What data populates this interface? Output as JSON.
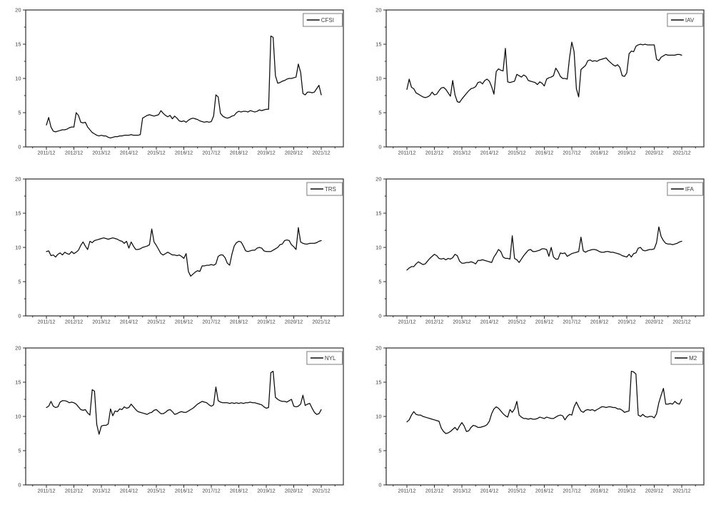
{
  "page": {
    "background": "#ffffff",
    "grid_rows": 3,
    "grid_cols": 2
  },
  "axis_style": {
    "line_color": "#2b2b2b",
    "label_color": "#3c3c3c",
    "series_color": "#0a0a0a"
  },
  "chart_data": [
    {
      "type": "line",
      "legend": "CFSI",
      "legend_position": "top-right",
      "grid": false,
      "x_start": "2011/12",
      "x_step_months": 1,
      "x_end": "2021/12",
      "x_tick_labels": [
        "2011/12",
        "2012/12",
        "2013/12",
        "2014/12",
        "2015/12",
        "2016/12",
        "2017/12",
        "2018/12",
        "2019/12",
        "2020/12",
        "2021/12"
      ],
      "x_minor_tick_months": 6,
      "ylim": [
        0,
        20
      ],
      "y_tick_values": [
        0,
        5,
        10,
        15,
        20
      ],
      "y_minor_tick_step": 2.5,
      "line_color": "#0a0a0a",
      "values": [
        3.2,
        4.3,
        2.9,
        2.3,
        2.2,
        2.3,
        2.4,
        2.5,
        2.5,
        2.6,
        2.8,
        2.9,
        2.9,
        5.0,
        4.6,
        3.6,
        3.5,
        3.6,
        2.9,
        2.5,
        2.1,
        1.9,
        1.7,
        1.6,
        1.7,
        1.6,
        1.6,
        1.4,
        1.3,
        1.4,
        1.5,
        1.5,
        1.6,
        1.6,
        1.7,
        1.7,
        1.7,
        1.8,
        1.7,
        1.7,
        1.7,
        1.8,
        4.2,
        4.4,
        4.6,
        4.7,
        4.6,
        4.5,
        4.6,
        4.7,
        5.3,
        4.9,
        4.6,
        4.4,
        4.6,
        4.1,
        4.5,
        4.2,
        3.8,
        3.7,
        3.8,
        3.6,
        3.9,
        4.1,
        4.2,
        4.1,
        4.0,
        3.8,
        3.7,
        3.6,
        3.7,
        3.6,
        3.7,
        4.5,
        7.6,
        7.3,
        4.9,
        4.5,
        4.3,
        4.2,
        4.3,
        4.5,
        4.6,
        5.0,
        5.2,
        5.1,
        5.2,
        5.2,
        5.1,
        5.3,
        5.2,
        5.1,
        5.2,
        5.4,
        5.3,
        5.4,
        5.5,
        5.5,
        16.2,
        16.0,
        10.4,
        9.3,
        9.4,
        9.6,
        9.7,
        9.9,
        10.0,
        10.0,
        10.1,
        10.2,
        12.1,
        10.9,
        7.8,
        7.6,
        8.0,
        8.0,
        7.9,
        8.0,
        8.5,
        9.0,
        7.6
      ]
    },
    {
      "type": "line",
      "legend": "IAV",
      "legend_position": "top-right",
      "grid": false,
      "x_start": "2011/12",
      "x_step_months": 1,
      "x_end": "2021/12",
      "x_tick_labels": [
        "2011/12",
        "2012/12",
        "2013/12",
        "2014/12",
        "2015/12",
        "2016/12",
        "2017/12",
        "2018/12",
        "2019/12",
        "2020/12",
        "2021/12"
      ],
      "x_minor_tick_months": 6,
      "ylim": [
        0,
        20
      ],
      "y_tick_values": [
        0,
        5,
        10,
        15,
        20
      ],
      "y_minor_tick_step": 2.5,
      "line_color": "#0a0a0a",
      "values": [
        8.4,
        9.9,
        8.7,
        8.5,
        7.9,
        7.7,
        7.5,
        7.3,
        7.2,
        7.3,
        7.5,
        8.0,
        7.6,
        7.7,
        8.2,
        8.6,
        8.7,
        8.4,
        7.9,
        7.4,
        9.7,
        7.6,
        6.6,
        6.5,
        7.0,
        7.4,
        7.8,
        8.2,
        8.5,
        8.6,
        8.8,
        9.4,
        9.5,
        9.2,
        9.7,
        9.9,
        9.6,
        8.8,
        7.7,
        11.0,
        11.4,
        11.2,
        11.1,
        14.4,
        9.5,
        9.4,
        9.5,
        9.6,
        10.6,
        10.4,
        10.2,
        10.5,
        10.3,
        9.7,
        9.6,
        9.5,
        9.4,
        9.1,
        9.5,
        9.3,
        8.9,
        9.9,
        10.1,
        10.2,
        10.4,
        11.5,
        11.0,
        10.3,
        10.0,
        10.0,
        9.9,
        13.0,
        15.3,
        13.9,
        8.5,
        7.3,
        11.3,
        11.6,
        11.9,
        12.6,
        12.7,
        12.5,
        12.6,
        12.5,
        12.7,
        12.8,
        12.9,
        13.0,
        12.6,
        12.3,
        12.0,
        11.8,
        12.0,
        11.6,
        10.4,
        10.3,
        10.8,
        13.6,
        14.0,
        13.9,
        14.7,
        14.9,
        15.0,
        14.9,
        15.0,
        14.9,
        14.9,
        14.9,
        14.9,
        12.8,
        12.6,
        13.1,
        13.3,
        13.5,
        13.4,
        13.4,
        13.4,
        13.4,
        13.5,
        13.5,
        13.4
      ]
    },
    {
      "type": "line",
      "legend": "TRS",
      "legend_position": "top-right",
      "grid": false,
      "x_start": "2011/12",
      "x_step_months": 1,
      "x_end": "2021/12",
      "x_tick_labels": [
        "2011/12",
        "2012/12",
        "2013/12",
        "2014/12",
        "2015/12",
        "2016/12",
        "2017/12",
        "2018/12",
        "2019/12",
        "2020/12",
        "2021/12"
      ],
      "x_minor_tick_months": 6,
      "ylim": [
        0,
        20
      ],
      "y_tick_values": [
        0,
        5,
        10,
        15,
        20
      ],
      "y_minor_tick_step": 2.5,
      "line_color": "#0a0a0a",
      "values": [
        9.4,
        9.5,
        8.8,
        8.9,
        8.6,
        9.0,
        9.2,
        8.9,
        9.3,
        9.1,
        9.0,
        9.4,
        9.1,
        9.3,
        9.6,
        10.3,
        10.8,
        10.2,
        9.7,
        10.9,
        10.7,
        11.0,
        11.1,
        11.2,
        11.3,
        11.4,
        11.3,
        11.2,
        11.3,
        11.4,
        11.3,
        11.2,
        11.0,
        10.9,
        10.6,
        10.9,
        9.9,
        10.8,
        10.2,
        9.7,
        9.7,
        9.8,
        10.0,
        10.1,
        10.2,
        10.4,
        12.7,
        10.8,
        10.3,
        9.7,
        9.1,
        8.9,
        9.1,
        9.3,
        9.1,
        8.9,
        8.9,
        8.8,
        8.9,
        8.7,
        8.4,
        9.1,
        6.5,
        5.8,
        6.1,
        6.4,
        6.6,
        6.5,
        7.3,
        7.3,
        7.4,
        7.4,
        7.5,
        7.4,
        7.6,
        8.7,
        8.9,
        8.9,
        8.5,
        7.7,
        7.4,
        9.0,
        10.2,
        10.7,
        10.9,
        10.8,
        10.2,
        9.5,
        9.4,
        9.5,
        9.6,
        9.6,
        9.9,
        10.0,
        9.9,
        9.5,
        9.4,
        9.4,
        9.4,
        9.6,
        9.8,
        10.0,
        10.4,
        10.5,
        11.0,
        11.1,
        11.0,
        10.4,
        10.1,
        9.7,
        12.9,
        10.8,
        10.6,
        10.5,
        10.5,
        10.6,
        10.6,
        10.6,
        10.7,
        10.9,
        11.0
      ]
    },
    {
      "type": "line",
      "legend": "IFA",
      "legend_position": "top-right",
      "grid": false,
      "x_start": "2011/12",
      "x_step_months": 1,
      "x_end": "2021/12",
      "x_tick_labels": [
        "2011/12",
        "2012/12",
        "2013/12",
        "2014/12",
        "2015/12",
        "2016/12",
        "2017/12",
        "2018/12",
        "2019/12",
        "2020/12",
        "2021/12"
      ],
      "x_minor_tick_months": 6,
      "ylim": [
        0,
        20
      ],
      "y_tick_values": [
        0,
        5,
        10,
        15,
        20
      ],
      "y_minor_tick_step": 2.5,
      "line_color": "#0a0a0a",
      "values": [
        6.7,
        7.0,
        7.2,
        7.2,
        7.6,
        7.9,
        7.7,
        7.5,
        7.6,
        8.0,
        8.4,
        8.7,
        9.0,
        8.8,
        8.4,
        8.3,
        8.4,
        8.2,
        8.4,
        8.3,
        8.5,
        9.0,
        8.8,
        8.0,
        7.7,
        7.7,
        7.8,
        7.8,
        7.9,
        7.8,
        7.6,
        8.1,
        8.1,
        8.2,
        8.1,
        8.0,
        7.9,
        7.8,
        8.6,
        9.1,
        9.7,
        9.4,
        8.6,
        8.4,
        8.4,
        8.3,
        11.7,
        8.4,
        8.2,
        7.8,
        8.3,
        8.8,
        9.2,
        9.6,
        9.7,
        9.4,
        9.4,
        9.5,
        9.6,
        9.8,
        9.8,
        9.7,
        8.7,
        10.0,
        8.6,
        8.3,
        8.3,
        9.2,
        9.1,
        9.2,
        8.7,
        8.9,
        9.1,
        9.2,
        9.3,
        9.4,
        11.5,
        9.5,
        9.3,
        9.5,
        9.6,
        9.7,
        9.7,
        9.6,
        9.4,
        9.3,
        9.3,
        9.4,
        9.4,
        9.3,
        9.3,
        9.2,
        9.1,
        9.0,
        8.8,
        8.7,
        8.6,
        9.0,
        8.6,
        9.1,
        9.2,
        9.9,
        10.0,
        9.6,
        9.5,
        9.6,
        9.7,
        9.7,
        9.8,
        10.7,
        13.0,
        11.6,
        11.0,
        10.6,
        10.5,
        10.5,
        10.4,
        10.5,
        10.6,
        10.8,
        10.9
      ]
    },
    {
      "type": "line",
      "legend": "NYL",
      "legend_position": "top-right",
      "grid": false,
      "x_start": "2011/12",
      "x_step_months": 1,
      "x_end": "2021/12",
      "x_tick_labels": [
        "2011/12",
        "2012/12",
        "2013/12",
        "2014/12",
        "2015/12",
        "2016/12",
        "2017/12",
        "2018/12",
        "2019/12",
        "2020/12",
        "2021/12"
      ],
      "x_minor_tick_months": 6,
      "ylim": [
        0,
        20
      ],
      "y_tick_values": [
        0,
        5,
        10,
        15,
        20
      ],
      "y_minor_tick_step": 2.5,
      "line_color": "#0a0a0a",
      "values": [
        11.3,
        11.5,
        12.2,
        11.5,
        11.3,
        11.4,
        12.1,
        12.3,
        12.3,
        12.2,
        12.0,
        12.1,
        12.0,
        11.8,
        11.4,
        11.0,
        10.9,
        11.0,
        10.5,
        10.2,
        13.9,
        13.7,
        8.8,
        7.4,
        8.6,
        8.7,
        8.7,
        8.9,
        11.1,
        10.1,
        10.8,
        10.7,
        11.1,
        11.0,
        11.4,
        11.2,
        11.3,
        11.8,
        11.4,
        11.0,
        10.7,
        10.6,
        10.5,
        10.4,
        10.3,
        10.5,
        10.6,
        10.9,
        11.0,
        10.7,
        10.4,
        10.4,
        10.6,
        10.9,
        11.0,
        10.7,
        10.3,
        10.4,
        10.6,
        10.7,
        10.6,
        10.6,
        10.8,
        11.0,
        11.2,
        11.5,
        11.8,
        12.0,
        12.2,
        12.1,
        12.0,
        11.7,
        11.5,
        11.7,
        14.3,
        12.3,
        12.1,
        12.0,
        12.0,
        12.0,
        11.9,
        12.0,
        11.9,
        12.0,
        11.9,
        12.0,
        11.9,
        12.0,
        12.0,
        12.1,
        12.0,
        12.0,
        11.9,
        11.8,
        11.7,
        11.4,
        11.2,
        11.3,
        16.4,
        16.6,
        12.8,
        12.5,
        12.3,
        12.2,
        12.2,
        12.1,
        12.3,
        12.5,
        11.5,
        11.4,
        11.5,
        11.8,
        13.1,
        11.6,
        11.8,
        11.9,
        11.2,
        10.6,
        10.3,
        10.4,
        11.0
      ]
    },
    {
      "type": "line",
      "legend": "M2",
      "legend_position": "top-right",
      "grid": false,
      "x_start": "2011/12",
      "x_step_months": 1,
      "x_end": "2021/12",
      "x_tick_labels": [
        "2011/12",
        "2012/12",
        "2013/12",
        "2014/12",
        "2015/12",
        "2016/12",
        "2017/12",
        "2018/12",
        "2019/12",
        "2020/12",
        "2021/12"
      ],
      "x_minor_tick_months": 6,
      "ylim": [
        0,
        20
      ],
      "y_tick_values": [
        0,
        5,
        10,
        15,
        20
      ],
      "y_minor_tick_step": 2.5,
      "line_color": "#0a0a0a",
      "values": [
        9.2,
        9.5,
        10.2,
        10.7,
        10.3,
        10.2,
        10.2,
        10.0,
        9.9,
        9.8,
        9.7,
        9.6,
        9.5,
        9.4,
        9.3,
        8.3,
        7.8,
        7.5,
        7.6,
        7.8,
        8.1,
        8.4,
        8.0,
        8.6,
        9.1,
        8.6,
        7.8,
        7.9,
        8.4,
        8.7,
        8.6,
        8.4,
        8.4,
        8.5,
        8.6,
        8.8,
        9.3,
        10.4,
        11.1,
        11.4,
        11.2,
        10.8,
        10.4,
        10.1,
        9.9,
        11.0,
        10.6,
        11.1,
        12.2,
        10.2,
        9.9,
        9.7,
        9.7,
        9.6,
        9.7,
        9.6,
        9.6,
        9.7,
        9.9,
        9.8,
        9.7,
        9.9,
        9.8,
        9.7,
        9.7,
        9.9,
        10.1,
        10.2,
        10.1,
        9.5,
        10.0,
        10.3,
        10.2,
        11.4,
        12.1,
        11.4,
        10.8,
        10.6,
        10.9,
        11.0,
        10.9,
        11.0,
        10.8,
        11.0,
        11.2,
        11.4,
        11.4,
        11.3,
        11.4,
        11.4,
        11.3,
        11.3,
        11.1,
        11.1,
        10.9,
        10.6,
        10.7,
        10.8,
        16.6,
        16.5,
        16.2,
        10.2,
        10.0,
        10.3,
        10.0,
        9.9,
        10.0,
        10.0,
        9.8,
        10.4,
        12.0,
        13.1,
        14.1,
        11.8,
        11.8,
        11.9,
        11.8,
        12.2,
        11.9,
        11.8,
        12.5
      ]
    }
  ]
}
